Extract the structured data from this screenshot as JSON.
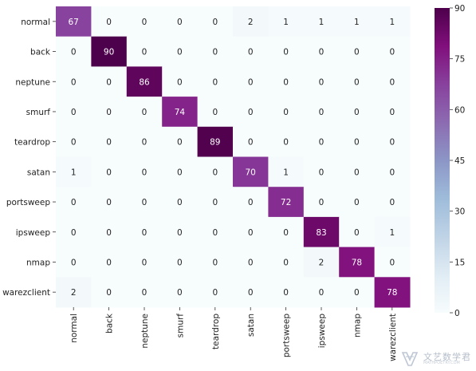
{
  "chart_data": {
    "type": "heatmap",
    "title": "",
    "xlabel": "",
    "ylabel": "",
    "row_labels": [
      "normal",
      "back",
      "neptune",
      "smurf",
      "teardrop",
      "satan",
      "portsweep",
      "ipsweep",
      "nmap",
      "warezclient"
    ],
    "col_labels": [
      "normal",
      "back",
      "neptune",
      "smurf",
      "teardrop",
      "satan",
      "portsweep",
      "ipsweep",
      "nmap",
      "warezclient"
    ],
    "values": [
      [
        67,
        0,
        0,
        0,
        0,
        2,
        1,
        1,
        1,
        1
      ],
      [
        0,
        90,
        0,
        0,
        0,
        0,
        0,
        0,
        0,
        0
      ],
      [
        0,
        0,
        86,
        0,
        0,
        0,
        0,
        0,
        0,
        0
      ],
      [
        0,
        0,
        0,
        74,
        0,
        0,
        0,
        0,
        0,
        0
      ],
      [
        0,
        0,
        0,
        0,
        89,
        0,
        0,
        0,
        0,
        0
      ],
      [
        1,
        0,
        0,
        0,
        0,
        70,
        1,
        0,
        0,
        0
      ],
      [
        0,
        0,
        0,
        0,
        0,
        0,
        72,
        0,
        0,
        0
      ],
      [
        0,
        0,
        0,
        0,
        0,
        0,
        0,
        83,
        0,
        1
      ],
      [
        0,
        0,
        0,
        0,
        0,
        0,
        0,
        2,
        78,
        0
      ],
      [
        2,
        0,
        0,
        0,
        0,
        0,
        0,
        0,
        0,
        78
      ]
    ],
    "colorbar": {
      "min": 0,
      "max": 90,
      "ticks": [
        0,
        15,
        30,
        45,
        60,
        75,
        90
      ],
      "colormap": "BuPu",
      "colors": [
        "#f7fcfd",
        "#e0ecf4",
        "#bfd3e6",
        "#9ebcda",
        "#8c96c6",
        "#8c6bb1",
        "#88419d",
        "#810f7c",
        "#4d004b"
      ]
    },
    "grid": false
  },
  "watermark": {
    "main": "文艺数学君",
    "sub": "MATHPOETRY.COM"
  }
}
